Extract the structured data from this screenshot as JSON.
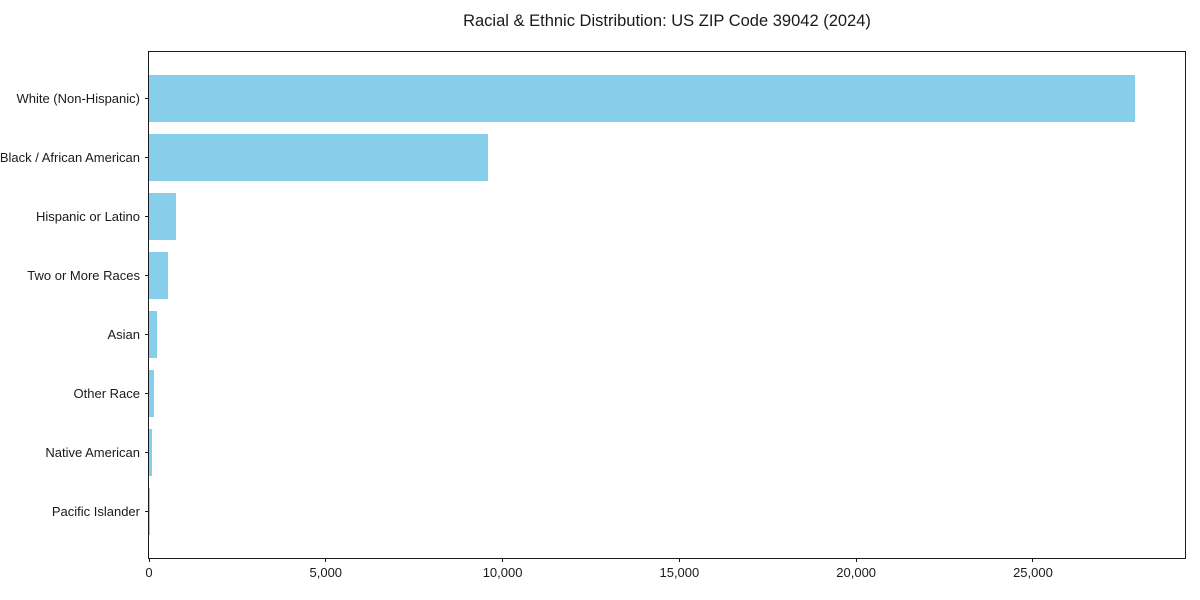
{
  "chart_data": {
    "type": "bar",
    "orientation": "horizontal",
    "title": "Racial & Ethnic Distribution: US ZIP Code 39042 (2024)",
    "xlabel": "",
    "ylabel": "",
    "categories": [
      "White (Non-Hispanic)",
      "Black / African American",
      "Hispanic or Latino",
      "Two or More Races",
      "Asian",
      "Other Race",
      "Native American",
      "Pacific Islander"
    ],
    "values": [
      27900,
      9580,
      750,
      545,
      240,
      155,
      80,
      10
    ],
    "xlim": [
      0,
      29300
    ],
    "xticks": [
      0,
      5000,
      10000,
      15000,
      20000,
      25000
    ],
    "xtick_labels": [
      "0",
      "5,000",
      "10,000",
      "15,000",
      "20,000",
      "25,000"
    ],
    "bar_color": "#87CEEB",
    "axis_color": "#1a1a1a",
    "grid": false,
    "legend": null
  }
}
